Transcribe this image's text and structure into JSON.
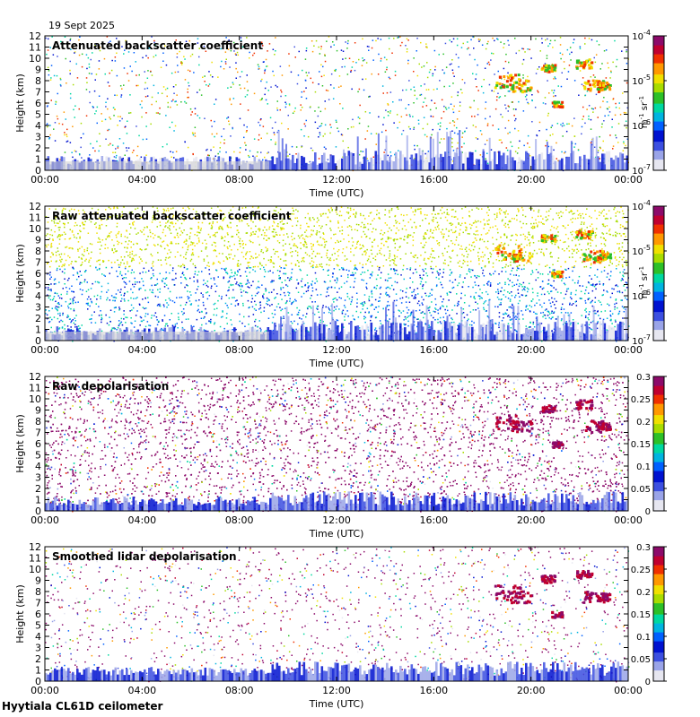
{
  "header": {
    "date": "19 Sept 2025"
  },
  "footer": {
    "instrument": "Hyytiala CL61D ceilometer"
  },
  "palette": {
    "jet": [
      "#e6e6f0",
      "#9aa4e8",
      "#3c4fe0",
      "#0012d0",
      "#0060ff",
      "#00b4e0",
      "#00d8a0",
      "#2cc028",
      "#a8dc00",
      "#f0e000",
      "#ff9800",
      "#f03000",
      "#c00030",
      "#8c0a6a"
    ]
  },
  "chart_data": [
    {
      "type": "heatmap",
      "title": "Attenuated backscatter coefficient",
      "xlabel": "Time (UTC)",
      "ylabel": "Height (km)",
      "x_ticks": [
        "00:00",
        "04:00",
        "08:00",
        "12:00",
        "16:00",
        "20:00",
        "00:00"
      ],
      "y_ticks": [
        "0",
        "1",
        "2",
        "3",
        "4",
        "5",
        "6",
        "7",
        "8",
        "9",
        "10",
        "11",
        "12"
      ],
      "ylim": [
        0,
        12
      ],
      "colorbar": {
        "scale": "log",
        "unit": "m-1 sr-1",
        "ticks": [
          "10-7",
          "10-6",
          "10-5",
          "10-4"
        ],
        "range": [
          "1e-7",
          "1e-4"
        ]
      }
    },
    {
      "type": "heatmap",
      "title": "Raw attenuated backscatter coefficient",
      "xlabel": "Time (UTC)",
      "ylabel": "Height (km)",
      "x_ticks": [
        "00:00",
        "04:00",
        "08:00",
        "12:00",
        "16:00",
        "20:00",
        "00:00"
      ],
      "y_ticks": [
        "0",
        "1",
        "2",
        "3",
        "4",
        "5",
        "6",
        "7",
        "8",
        "9",
        "10",
        "11",
        "12"
      ],
      "ylim": [
        0,
        12
      ],
      "colorbar": {
        "scale": "log",
        "unit": "m-1 sr-1",
        "ticks": [
          "10-7",
          "10-6",
          "10-5",
          "10-4"
        ],
        "range": [
          "1e-7",
          "1e-4"
        ]
      }
    },
    {
      "type": "heatmap",
      "title": "Raw depolarisation",
      "xlabel": "Time (UTC)",
      "ylabel": "Height (km)",
      "x_ticks": [
        "00:00",
        "04:00",
        "08:00",
        "12:00",
        "16:00",
        "20:00",
        "00:00"
      ],
      "y_ticks": [
        "0",
        "1",
        "2",
        "3",
        "4",
        "5",
        "6",
        "7",
        "8",
        "9",
        "10",
        "11",
        "12"
      ],
      "ylim": [
        0,
        12
      ],
      "colorbar": {
        "scale": "linear",
        "unit": "",
        "ticks": [
          "0",
          "0.05",
          "0.1",
          "0.15",
          "0.2",
          "0.25",
          "0.3"
        ],
        "range": [
          0,
          0.3
        ]
      }
    },
    {
      "type": "heatmap",
      "title": "Smoothed lidar depolarisation",
      "xlabel": "Time (UTC)",
      "ylabel": "Height (km)",
      "x_ticks": [
        "00:00",
        "04:00",
        "08:00",
        "12:00",
        "16:00",
        "20:00",
        "00:00"
      ],
      "y_ticks": [
        "0",
        "1",
        "2",
        "3",
        "4",
        "5",
        "6",
        "7",
        "8",
        "9",
        "10",
        "11",
        "12"
      ],
      "ylim": [
        0,
        12
      ],
      "colorbar": {
        "scale": "linear",
        "unit": "",
        "ticks": [
          "0",
          "0.05",
          "0.1",
          "0.15",
          "0.2",
          "0.25",
          "0.3"
        ],
        "range": [
          0,
          0.3
        ]
      }
    }
  ]
}
